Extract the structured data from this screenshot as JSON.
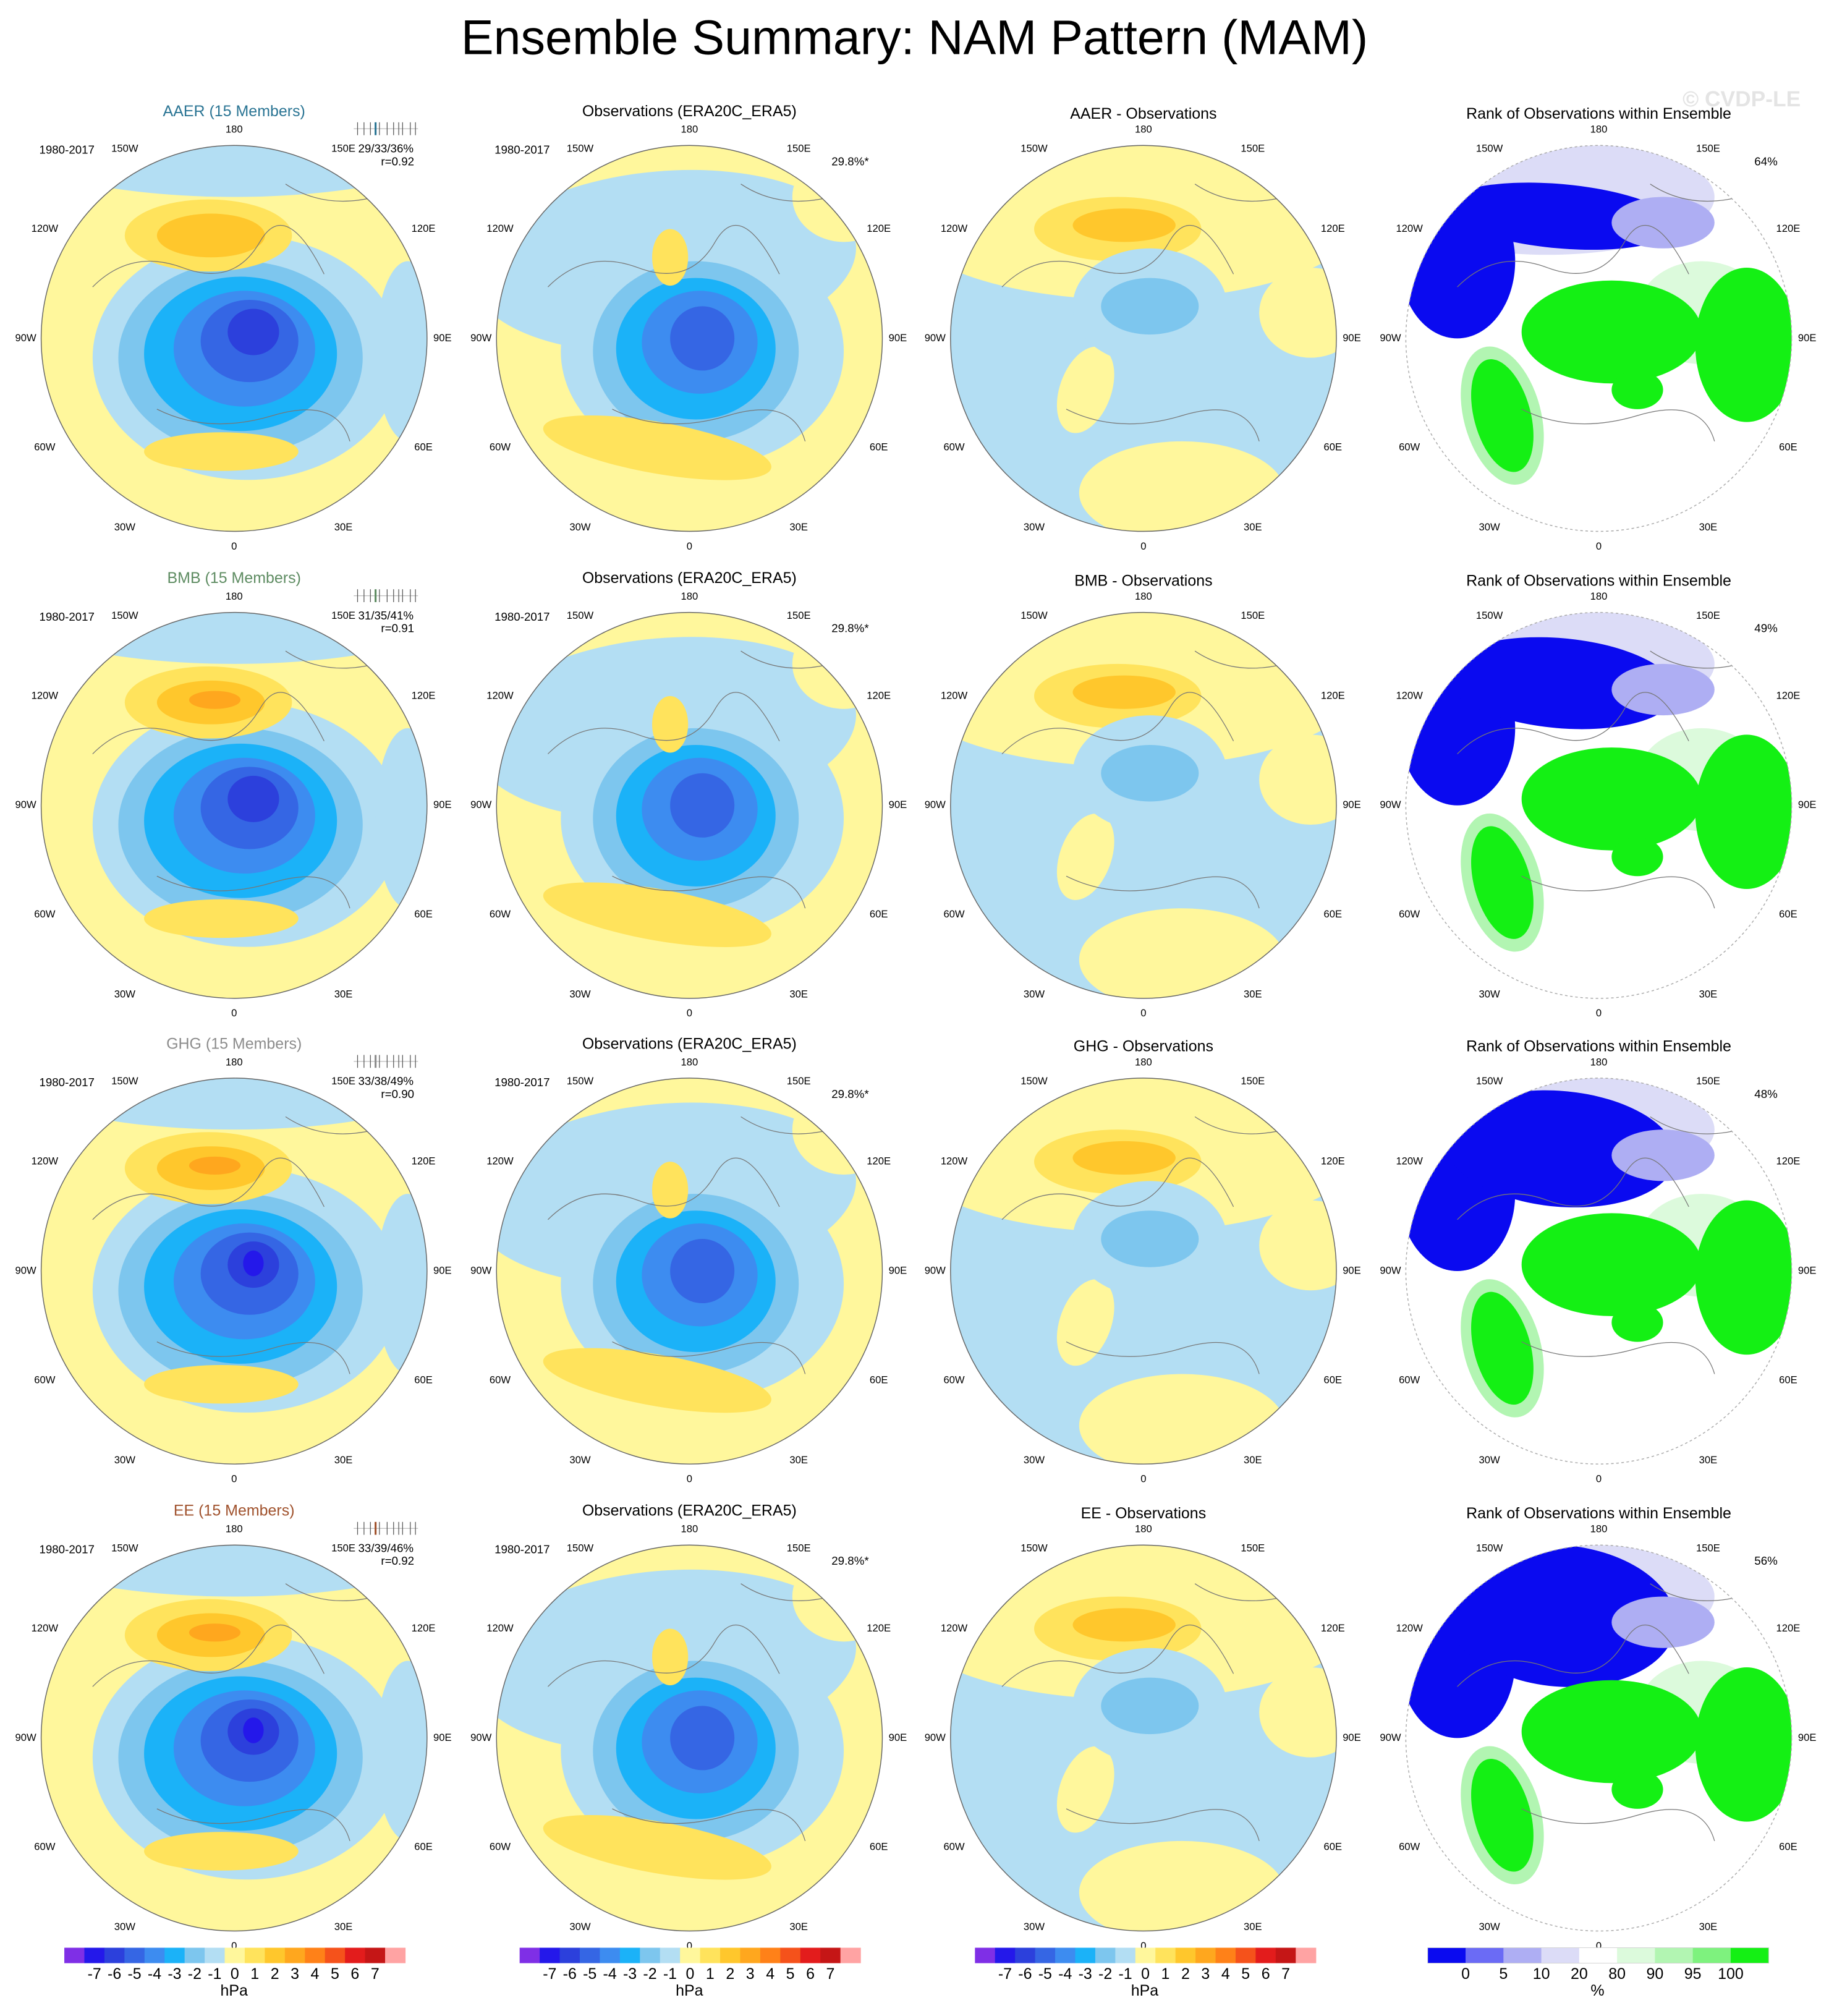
{
  "title": "Ensemble Summary: NAM Pattern (MAM)",
  "copyright": "© CVDP-LE",
  "longitude_labels": [
    "180",
    "150E",
    "120E",
    "90E",
    "60E",
    "30E",
    "0",
    "30W",
    "60W",
    "90W",
    "120W",
    "150W"
  ],
  "rows": [
    {
      "model": {
        "title": "AAER (15 Members)",
        "color": "#2b7594",
        "period": "1980-2017",
        "stats": "29/33/36%",
        "r": "r=0.92"
      },
      "observations": {
        "title": "Observations (ERA20C_ERA5)",
        "period": "1980-2017",
        "variance": "29.8%*"
      },
      "difference": {
        "title": "AAER - Observations"
      },
      "rank": {
        "title": "Rank of Observations within Ensemble",
        "percent": "64%"
      }
    },
    {
      "model": {
        "title": "BMB (15 Members)",
        "color": "#5e8c62",
        "period": "1980-2017",
        "stats": "31/35/41%",
        "r": "r=0.91"
      },
      "observations": {
        "title": "Observations (ERA20C_ERA5)",
        "period": "1980-2017",
        "variance": "29.8%*"
      },
      "difference": {
        "title": "BMB - Observations"
      },
      "rank": {
        "title": "Rank of Observations within Ensemble",
        "percent": "49%"
      }
    },
    {
      "model": {
        "title": "GHG (15 Members)",
        "color": "#8c8c8c",
        "period": "1980-2017",
        "stats": "33/38/49%",
        "r": "r=0.90"
      },
      "observations": {
        "title": "Observations (ERA20C_ERA5)",
        "period": "1980-2017",
        "variance": "29.8%*"
      },
      "difference": {
        "title": "GHG - Observations"
      },
      "rank": {
        "title": "Rank of Observations within Ensemble",
        "percent": "48%"
      }
    },
    {
      "model": {
        "title": "EE (15 Members)",
        "color": "#a0522d",
        "period": "1980-2017",
        "stats": "33/39/46%",
        "r": "r=0.92"
      },
      "observations": {
        "title": "Observations (ERA20C_ERA5)",
        "period": "1980-2017",
        "variance": "29.8%*"
      },
      "difference": {
        "title": "EE - Observations"
      },
      "rank": {
        "title": "Rank of Observations within Ensemble",
        "percent": "56%"
      }
    }
  ],
  "colorbar": {
    "labels": [
      -7,
      -6,
      -5,
      -4,
      -3,
      -2,
      -1,
      0,
      1,
      2,
      3,
      4,
      5,
      6,
      7
    ],
    "units": "hPa",
    "colors": [
      "#7f2fe6",
      "#2418ea",
      "#2c40dc",
      "#3566e4",
      "#3d8cf0",
      "#1bb2f8",
      "#7dc6ee",
      "#b3def3",
      "#fff79c",
      "#ffe35c",
      "#ffc72c",
      "#ffa71e",
      "#ff8118",
      "#f5521b",
      "#e31c1c",
      "#c51616",
      "#ffa3a3"
    ]
  },
  "rank_colorbar": {
    "labels": [
      0,
      5,
      10,
      20,
      80,
      90,
      95,
      100
    ],
    "units": "%",
    "colors": [
      "#0a0af0",
      "#6b6bf5",
      "#aeaef3",
      "#dcdcf7",
      "#ffffff",
      "#dcfadc",
      "#b2f5b2",
      "#7ef27e",
      "#14f014"
    ]
  }
}
